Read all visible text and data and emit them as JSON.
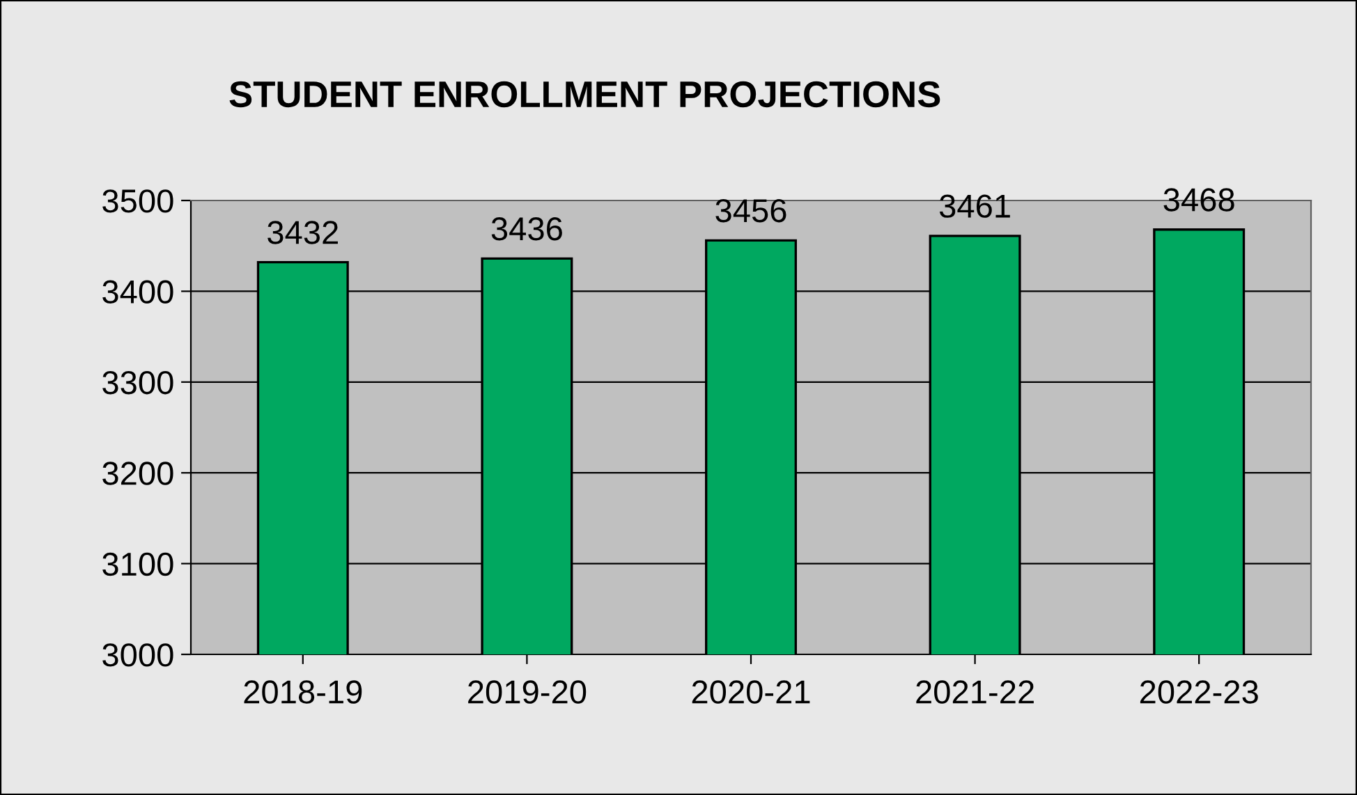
{
  "chart_data": {
    "type": "bar",
    "title": "STUDENT ENROLLMENT PROJECTIONS",
    "categories": [
      "2018-19",
      "2019-20",
      "2020-21",
      "2021-22",
      "2022-23"
    ],
    "values": [
      3432,
      3436,
      3456,
      3461,
      3468
    ],
    "color": "#00a860",
    "ylim": [
      3000,
      3500
    ],
    "yticks": [
      3000,
      3100,
      3200,
      3300,
      3400,
      3500
    ],
    "grid": "y",
    "data_labels": true
  }
}
